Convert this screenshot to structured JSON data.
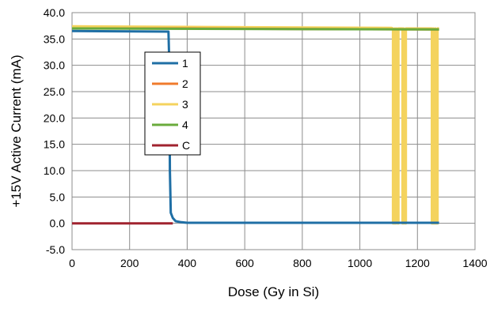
{
  "chart_data": {
    "type": "line",
    "title": "",
    "xlabel": "Dose (Gy in Si)",
    "ylabel": "+15V Active Current (mA)",
    "xlim": [
      0,
      1400
    ],
    "ylim": [
      -5,
      40
    ],
    "x_ticks": [
      0,
      200,
      400,
      600,
      800,
      1000,
      1200,
      1400
    ],
    "y_ticks": [
      -5.0,
      0.0,
      5.0,
      10.0,
      15.0,
      20.0,
      25.0,
      30.0,
      35.0,
      40.0
    ],
    "x_tick_labels": [
      "0",
      "200",
      "400",
      "600",
      "800",
      "1000",
      "1200",
      "1400"
    ],
    "y_tick_labels": [
      "-5.0",
      "0.0",
      "5.0",
      "10.0",
      "15.0",
      "20.0",
      "25.0",
      "30.0",
      "35.0",
      "40.0"
    ],
    "grid": true,
    "legend_position": "left, inside plot",
    "series": [
      {
        "name": "1",
        "color": "#1f6fa5",
        "points": [
          [
            0,
            36.5
          ],
          [
            335,
            36.4
          ],
          [
            338,
            30.0
          ],
          [
            340,
            10.0
          ],
          [
            343,
            2.0
          ],
          [
            350,
            1.0
          ],
          [
            360,
            0.4
          ],
          [
            380,
            0.2
          ],
          [
            400,
            0.1
          ],
          [
            1275,
            0.1
          ]
        ]
      },
      {
        "name": "2",
        "color": "#f07b2c",
        "points": [
          [
            0,
            37.0
          ],
          [
            400,
            37.0
          ],
          [
            800,
            36.9
          ],
          [
            1275,
            36.8
          ]
        ]
      },
      {
        "name": "3",
        "color": "#f4d35e",
        "points": [
          [
            0,
            37.4
          ],
          [
            400,
            37.3
          ],
          [
            800,
            37.2
          ],
          [
            1110,
            37.1
          ],
          [
            1115,
            37.0
          ],
          [
            1115,
            0.0
          ],
          [
            1122,
            0.0
          ],
          [
            1122,
            37.0
          ],
          [
            1125,
            0.0
          ],
          [
            1128,
            37.0
          ],
          [
            1131,
            0.0
          ],
          [
            1134,
            0.0
          ],
          [
            1134,
            37.0
          ],
          [
            1148,
            37.0
          ],
          [
            1148,
            0.0
          ],
          [
            1152,
            0.0
          ],
          [
            1152,
            37.0
          ],
          [
            1156,
            0.0
          ],
          [
            1160,
            0.0
          ],
          [
            1160,
            37.0
          ],
          [
            1162,
            37.0
          ],
          [
            1250,
            37.0
          ],
          [
            1250,
            0.0
          ],
          [
            1255,
            0.0
          ],
          [
            1255,
            37.0
          ],
          [
            1258,
            0.0
          ],
          [
            1262,
            0.0
          ],
          [
            1262,
            37.0
          ],
          [
            1265,
            0.0
          ],
          [
            1270,
            0.0
          ],
          [
            1270,
            37.0
          ],
          [
            1275,
            37.0
          ]
        ]
      },
      {
        "name": "4",
        "color": "#6aab3c",
        "points": [
          [
            0,
            37.0
          ],
          [
            1275,
            36.8
          ]
        ]
      },
      {
        "name": "C",
        "color": "#a0232f",
        "points": [
          [
            0,
            0.0
          ],
          [
            350,
            0.0
          ]
        ]
      }
    ]
  }
}
